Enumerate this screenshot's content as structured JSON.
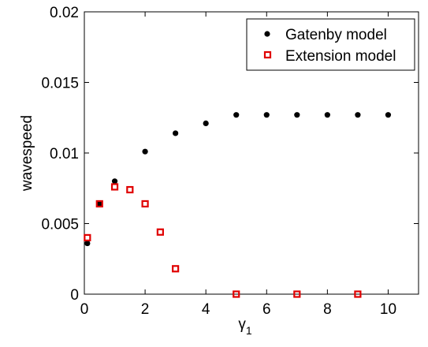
{
  "chart_data": {
    "type": "scatter",
    "xlabel": "γ",
    "xlabel_sub": "1",
    "ylabel": "wavespeed",
    "xlim": [
      0,
      11
    ],
    "ylim": [
      0,
      0.02
    ],
    "xticks": [
      0,
      2,
      4,
      6,
      8,
      10
    ],
    "xtick_labels": [
      "0",
      "2",
      "4",
      "6",
      "8",
      "10"
    ],
    "yticks": [
      0,
      0.005,
      0.01,
      0.015,
      0.02
    ],
    "ytick_labels": [
      "0",
      "0.005",
      "0.01",
      "0.015",
      "0.02"
    ],
    "grid": false,
    "legend_position": "top-right",
    "series": [
      {
        "name": "Gatenby model",
        "marker": "filled-circle",
        "color": "#000000",
        "x": [
          0.1,
          0.5,
          1,
          2,
          3,
          4,
          5,
          6,
          7,
          8,
          9,
          10
        ],
        "y": [
          0.0036,
          0.0064,
          0.008,
          0.0101,
          0.0114,
          0.0121,
          0.0127,
          0.0127,
          0.0127,
          0.0127,
          0.0127,
          0.0127
        ]
      },
      {
        "name": "Extension model",
        "marker": "open-square",
        "color": "#e00000",
        "x": [
          0.1,
          0.5,
          1,
          1.5,
          2,
          2.5,
          3,
          5,
          7,
          9
        ],
        "y": [
          0.004,
          0.0064,
          0.0076,
          0.0074,
          0.0064,
          0.0044,
          0.0018,
          0,
          0,
          0
        ]
      }
    ]
  }
}
